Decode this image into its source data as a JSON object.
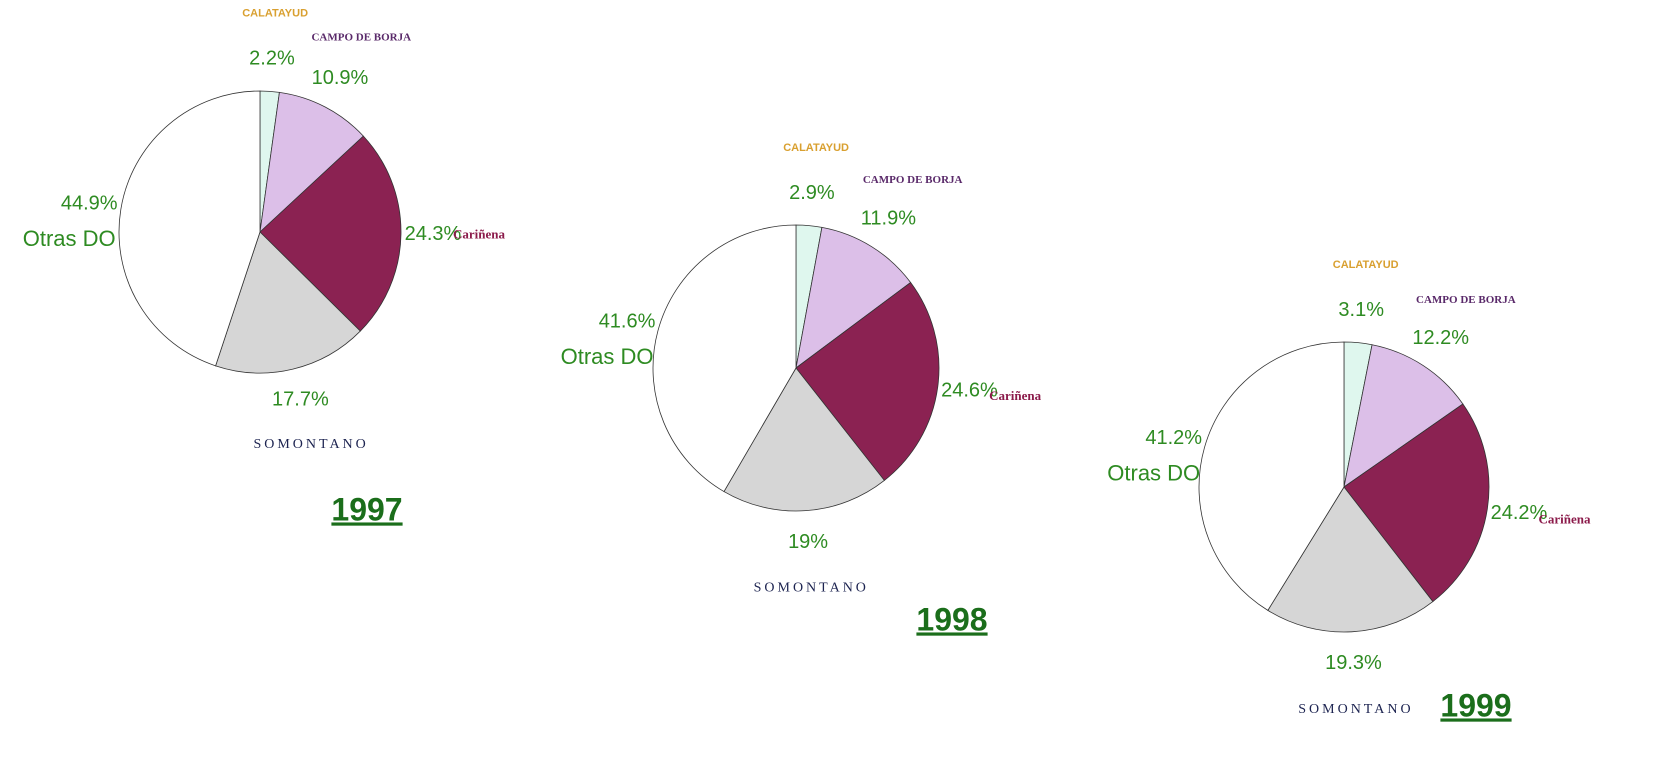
{
  "chart_data": [
    {
      "type": "pie",
      "title": "1997",
      "categories": [
        "CALATAYUD",
        "CAMPO DE BORJA",
        "Cariñena",
        "SOMONTANO",
        "Otras DO"
      ],
      "values": [
        2.2,
        10.9,
        24.3,
        17.7,
        44.9
      ],
      "value_labels": [
        "2.2%",
        "10.9%",
        "24.3%",
        "17.7%",
        "44.9%"
      ],
      "colors": [
        "#dff7ee",
        "#dcbfe8",
        "#8b2252",
        "#d6d6d6",
        "#ffffff"
      ]
    },
    {
      "type": "pie",
      "title": "1998",
      "categories": [
        "CALATAYUD",
        "CAMPO DE BORJA",
        "Cariñena",
        "SOMONTANO",
        "Otras DO"
      ],
      "values": [
        2.9,
        11.9,
        24.6,
        19,
        41.6
      ],
      "value_labels": [
        "2.9%",
        "11.9%",
        "24.6%",
        "19%",
        "41.6%"
      ],
      "colors": [
        "#dff7ee",
        "#dcbfe8",
        "#8b2252",
        "#d6d6d6",
        "#ffffff"
      ]
    },
    {
      "type": "pie",
      "title": "1999",
      "categories": [
        "CALATAYUD",
        "CAMPO DE BORJA",
        "Cariñena",
        "SOMONTANO",
        "Otras DO"
      ],
      "values": [
        3.1,
        12.2,
        24.2,
        19.3,
        41.2
      ],
      "value_labels": [
        "3.1%",
        "12.2%",
        "24.2%",
        "19.3%",
        "41.2%"
      ],
      "colors": [
        "#dff7ee",
        "#dcbfe8",
        "#8b2252",
        "#d6d6d6",
        "#ffffff"
      ]
    }
  ]
}
